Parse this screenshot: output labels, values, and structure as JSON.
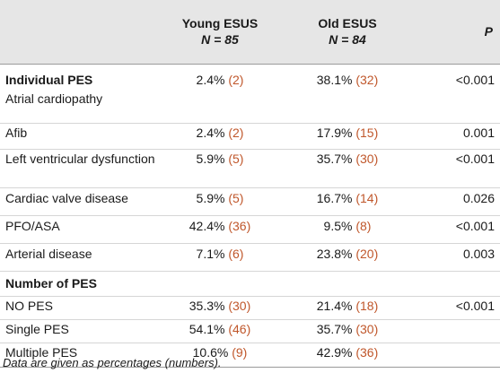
{
  "header": {
    "col1": "Young ESUS",
    "col1_n": "N = 85",
    "col2": "Old ESUS",
    "col2_n": "N = 84",
    "col3": "P"
  },
  "rows": [
    {
      "label": "Individual PES",
      "sublabel": "Atrial cardiopathy",
      "young_pct": "2.4%",
      "young_n": "(2)",
      "old_pct": "38.1%",
      "old_n": "(32)",
      "p": "<0.001"
    },
    {
      "label": "Afib",
      "young_pct": "2.4%",
      "young_n": "(2)",
      "old_pct": "17.9%",
      "old_n": "(15)",
      "p": "0.001"
    },
    {
      "label": "Left ventricular dysfunction",
      "young_pct": "5.9%",
      "young_n": "(5)",
      "old_pct": "35.7%",
      "old_n": "(30)",
      "p": "<0.001"
    },
    {
      "label": "Cardiac valve disease",
      "young_pct": "5.9%",
      "young_n": "(5)",
      "old_pct": "16.7%",
      "old_n": "(14)",
      "p": "0.026"
    },
    {
      "label": "PFO/ASA",
      "young_pct": "42.4%",
      "young_n": "(36)",
      "old_pct": "9.5%",
      "old_n": "(8)",
      "p": "<0.001"
    },
    {
      "label": "Arterial disease",
      "young_pct": "7.1%",
      "young_n": "(6)",
      "old_pct": "23.8%",
      "old_n": "(20)",
      "p": "0.003"
    },
    {
      "label": "Number of PES"
    },
    {
      "label": "NO PES",
      "young_pct": "35.3%",
      "young_n": "(30)",
      "old_pct": "21.4%",
      "old_n": "(18)",
      "p": "<0.001"
    },
    {
      "label": "Single PES",
      "young_pct": "54.1%",
      "young_n": "(46)",
      "old_pct": "35.7%",
      "old_n": "(30)",
      "p": ""
    },
    {
      "label": "Multiple PES",
      "young_pct": "10.6%",
      "young_n": "(9)",
      "old_pct": "42.9%",
      "old_n": "(36)",
      "p": ""
    }
  ],
  "footnote": "Data are given as percentages (numbers).",
  "colors": {
    "header_bg": "#e6e6e6",
    "count_text": "#c0572b"
  }
}
